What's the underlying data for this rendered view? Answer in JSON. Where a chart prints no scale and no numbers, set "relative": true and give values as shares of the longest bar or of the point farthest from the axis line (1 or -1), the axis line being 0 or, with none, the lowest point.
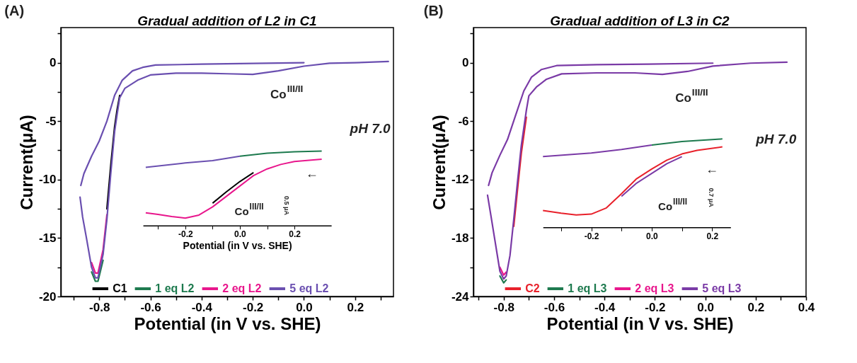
{
  "chart_data": [
    {
      "type": "line",
      "title": "Gradual addition of L2 in C1",
      "xlabel": "Potential (in V vs. SHE)",
      "ylabel": "Current(μA)",
      "xlim": [
        -0.95,
        0.35
      ],
      "ylim": [
        -20,
        3
      ],
      "xticks": [
        {
          "value": -0.9,
          "label": null
        },
        -0.8,
        {
          "value": -0.7,
          "label": null
        },
        -0.6,
        {
          "value": -0.5,
          "label": null
        },
        -0.4,
        {
          "value": -0.3,
          "label": null
        },
        -0.2,
        {
          "value": -0.1,
          "label": null
        },
        {
          "value": 0,
          "label": "0.0"
        },
        {
          "value": 0.1,
          "label": null
        },
        0.2,
        {
          "value": 0.3,
          "label": null
        }
      ],
      "yticks": [
        {
          "value": 2.5,
          "label": null
        },
        0,
        {
          "value": -2.5,
          "label": null
        },
        -5,
        {
          "value": -7.5,
          "label": null
        },
        -10,
        {
          "value": -12.5,
          "label": null
        },
        -15,
        {
          "value": -17.5,
          "label": null
        },
        -20
      ],
      "legend": "bottom",
      "annotations": [
        "(A)",
        "Co$^{III/II}$",
        "pH 7.0"
      ],
      "series": [
        {
          "name": "C1",
          "color": "#000000",
          "x": [
            -0.72,
            -0.73,
            -0.74,
            -0.755,
            -0.77
          ],
          "values": [
            -2.8,
            -4.0,
            -5.5,
            -8.8,
            -12.5
          ]
        },
        {
          "name": "1 eq L2",
          "color": "#1d7a4e",
          "x": [
            -0.785,
            -0.805,
            -0.815,
            -0.83
          ],
          "values": [
            -16.9,
            -18.7,
            -18.7,
            -17.9
          ]
        },
        {
          "name": "2 eq L2",
          "color": "#e8168c",
          "x": [
            -0.77,
            -0.785,
            -0.805,
            -0.815,
            -0.83
          ],
          "values": [
            -13.0,
            -16.0,
            -18.0,
            -18.0,
            -17.1
          ]
        },
        {
          "name": "5 eq L2",
          "color": "#6a4fb0",
          "x": [
            0.33,
            0.2,
            0.1,
            0.0,
            -0.1,
            -0.2,
            -0.3,
            -0.4,
            -0.5,
            -0.6,
            -0.65,
            -0.7,
            -0.72,
            -0.73,
            -0.74,
            -0.755,
            -0.77,
            -0.785,
            -0.805,
            -0.815,
            -0.83,
            -0.85,
            -0.865,
            -0.875
          ],
          "values": [
            0.1,
            0.0,
            -0.05,
            -0.3,
            -0.7,
            -1.0,
            -0.95,
            -0.9,
            -0.9,
            -1.05,
            -1.5,
            -2.2,
            -3.0,
            -4.4,
            -5.9,
            -9.5,
            -13.4,
            -16.4,
            -18.4,
            -18.4,
            -17.5,
            -15.0,
            -13.2,
            -11.5
          ]
        },
        {
          "color": "#6a4fb0",
          "x": [
            -0.872,
            -0.86,
            -0.83,
            -0.8,
            -0.77,
            -0.74,
            -0.71,
            -0.67,
            -0.63,
            -0.58,
            -0.4,
            -0.2,
            0.0
          ],
          "values": [
            -10.5,
            -9.5,
            -8.0,
            -6.7,
            -5.0,
            -2.8,
            -1.5,
            -0.7,
            -0.4,
            -0.2,
            -0.13,
            -0.07,
            0.0
          ]
        }
      ]
    },
    {
      "type": "line",
      "xlabel": "Potential (in V vs. SHE)",
      "relative": true,
      "tick_labels": "x",
      "xlim": [
        -0.355,
        0.335
      ],
      "xticks": [
        {
          "value": -0.3,
          "label": null
        },
        -0.2,
        {
          "value": -0.1,
          "label": null
        },
        {
          "value": 0,
          "label": "0.0"
        },
        {
          "value": 0.1,
          "label": null
        },
        0.2
      ],
      "annotations": [
        "Co$^{III/II}$",
        "0.5 μA",
        "←"
      ],
      "series": [
        {
          "color": "#000000",
          "x": [
            0.05,
            0.0,
            -0.05,
            -0.1
          ],
          "values": [
            0.71,
            0.59,
            0.45,
            0.3
          ]
        },
        {
          "color": "#e8168c",
          "x": [
            0.3,
            0.2,
            0.15,
            0.1,
            0.05,
            0.0,
            -0.05,
            -0.1,
            -0.15,
            -0.2,
            -0.25,
            -0.3,
            -0.345
          ],
          "values": [
            0.89,
            0.86,
            0.82,
            0.76,
            0.67,
            0.53,
            0.39,
            0.25,
            0.14,
            0.1,
            0.12,
            0.15,
            0.17
          ]
        },
        {
          "color": "#6a4fb0",
          "x": [
            -0.345,
            -0.2,
            -0.1,
            0.0
          ],
          "values": [
            0.78,
            0.84,
            0.87,
            0.93
          ]
        },
        {
          "color": "#1d7a4e",
          "x": [
            0.0,
            0.1,
            0.2,
            0.3
          ],
          "values": [
            0.93,
            0.97,
            0.99,
            1.0
          ]
        }
      ]
    },
    {
      "type": "line",
      "title": "Gradual addition of L3 in C2",
      "xlabel": "Potential (in V vs. SHE)",
      "ylabel": "Current(μA)",
      "xlim": [
        -0.92,
        0.4
      ],
      "ylim": [
        -24,
        3.6
      ],
      "xticks": [
        {
          "value": -0.9,
          "label": null
        },
        -0.8,
        {
          "value": -0.7,
          "label": null
        },
        -0.6,
        {
          "value": -0.5,
          "label": null
        },
        -0.4,
        {
          "value": -0.3,
          "label": null
        },
        -0.2,
        {
          "value": -0.1,
          "label": null
        },
        {
          "value": 0,
          "label": "0.0"
        },
        {
          "value": 0.1,
          "label": null
        },
        0.2,
        {
          "value": 0.3,
          "label": null
        },
        0.4
      ],
      "yticks": [
        {
          "value": 3,
          "label": null
        },
        0,
        {
          "value": -3,
          "label": null
        },
        -6,
        {
          "value": -9,
          "label": null
        },
        -12,
        {
          "value": -15,
          "label": null
        },
        -18,
        {
          "value": -21,
          "label": null
        },
        -24
      ],
      "legend": "bottom",
      "annotations": [
        "(B)",
        "Co$^{III/II}$",
        "pH 7.0"
      ],
      "series": [
        {
          "name": "C2",
          "color": "#e8202a",
          "x": [
            -0.71,
            -0.73,
            -0.745,
            -0.76
          ],
          "values": [
            -5.6,
            -9.3,
            -13.0,
            -16.8
          ]
        },
        {
          "name": "1 eq L3",
          "color": "#1d7a4e",
          "x": [
            -0.79,
            -0.8,
            -0.815
          ],
          "values": [
            -22.3,
            -22.6,
            -21.9
          ]
        },
        {
          "name": "2 eq L3",
          "color": "#e8168c",
          "x": [
            -0.79,
            -0.8,
            -0.815
          ],
          "values": [
            -21.5,
            -21.8,
            -21.0
          ]
        },
        {
          "name": "5 eq L3",
          "color": "#7a3aa6",
          "x": [
            0.324,
            0.18,
            0.03,
            -0.07,
            -0.17,
            -0.28,
            -0.43,
            -0.57,
            -0.63,
            -0.67,
            -0.7,
            -0.71,
            -0.73,
            -0.745,
            -0.76,
            -0.775,
            -0.79,
            -0.8,
            -0.815,
            -0.835,
            -0.85,
            -0.864
          ],
          "values": [
            0.05,
            -0.05,
            -0.35,
            -0.9,
            -1.2,
            -1.05,
            -1.05,
            -1.15,
            -1.7,
            -2.5,
            -3.4,
            -4.9,
            -8.5,
            -12.2,
            -16.1,
            -19.8,
            -21.9,
            -22.2,
            -21.4,
            -18.2,
            -15.8,
            -13.6
          ]
        },
        {
          "color": "#7a3aa6",
          "x": [
            -0.86,
            -0.846,
            -0.815,
            -0.785,
            -0.754,
            -0.72,
            -0.69,
            -0.65,
            -0.59,
            -0.43,
            -0.225,
            0.03
          ],
          "values": [
            -12.6,
            -11.3,
            -9.5,
            -7.9,
            -5.5,
            -2.9,
            -1.5,
            -0.7,
            -0.3,
            -0.2,
            -0.15,
            -0.05
          ]
        }
      ]
    },
    {
      "type": "line",
      "relative": true,
      "tick_labels": "x",
      "xlim": [
        -0.36,
        0.261
      ],
      "xticks": [
        {
          "value": -0.3,
          "label": null
        },
        -0.2,
        {
          "value": -0.1,
          "label": null
        },
        {
          "value": 0,
          "label": "0.0"
        },
        {
          "value": 0.1,
          "label": null
        },
        0.2
      ],
      "annotations": [
        "Co$^{III/II}$",
        "0.7 μA",
        "←"
      ],
      "series": [
        {
          "color": "#7a3aa6",
          "x": [
            0.1,
            0.05,
            0.0,
            -0.05,
            -0.1
          ],
          "values": [
            0.8,
            0.72,
            0.61,
            0.5,
            0.35
          ]
        },
        {
          "color": "#e8202a",
          "x": [
            0.234,
            0.15,
            0.1,
            0.05,
            0.0,
            -0.05,
            -0.1,
            -0.15,
            -0.2,
            -0.25,
            -0.3,
            -0.36
          ],
          "values": [
            0.91,
            0.87,
            0.83,
            0.76,
            0.66,
            0.55,
            0.38,
            0.22,
            0.15,
            0.14,
            0.16,
            0.19
          ]
        },
        {
          "color": "#7a3aa6",
          "x": [
            -0.36,
            -0.2,
            -0.1,
            0.0
          ],
          "values": [
            0.8,
            0.84,
            0.88,
            0.93
          ]
        },
        {
          "color": "#1d7a4e",
          "x": [
            0.0,
            0.1,
            0.234
          ],
          "values": [
            0.93,
            0.97,
            1.0
          ]
        }
      ]
    }
  ]
}
